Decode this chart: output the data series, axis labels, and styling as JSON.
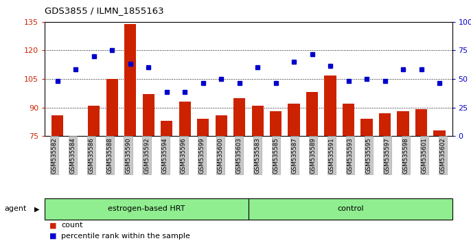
{
  "title": "GDS3855 / ILMN_1855163",
  "samples": [
    "GSM535582",
    "GSM535584",
    "GSM535586",
    "GSM535588",
    "GSM535590",
    "GSM535592",
    "GSM535594",
    "GSM535596",
    "GSM535599",
    "GSM535600",
    "GSM535603",
    "GSM535583",
    "GSM535585",
    "GSM535587",
    "GSM535589",
    "GSM535591",
    "GSM535593",
    "GSM535595",
    "GSM535597",
    "GSM535598",
    "GSM535601",
    "GSM535602"
  ],
  "bar_vals": [
    86,
    75,
    91,
    105,
    134,
    97,
    83,
    93,
    84,
    86,
    95,
    91,
    88,
    92,
    98,
    107,
    92,
    84,
    87,
    88,
    89,
    78
  ],
  "dot_left_equiv": [
    104,
    110,
    117,
    120,
    113,
    111,
    98,
    98,
    103,
    105,
    103,
    111,
    103,
    114,
    118,
    112,
    104,
    105,
    104,
    110,
    110,
    103
  ],
  "group1_label": "estrogen-based HRT",
  "group2_label": "control",
  "group1_count": 11,
  "group2_count": 11,
  "bar_color": "#cc2200",
  "dot_color": "#0000cc",
  "group_bg": "#90ee90",
  "tick_bg": "#c8c8c8",
  "tick_edge": "#999999"
}
